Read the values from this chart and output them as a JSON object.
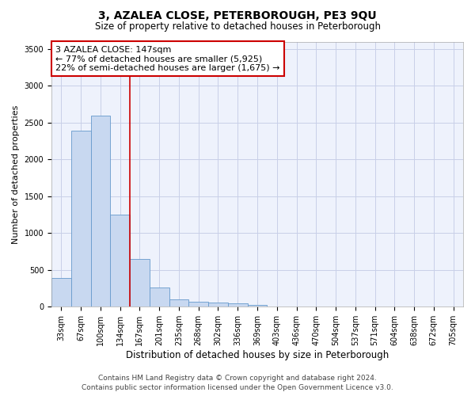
{
  "title": "3, AZALEA CLOSE, PETERBOROUGH, PE3 9QU",
  "subtitle": "Size of property relative to detached houses in Peterborough",
  "xlabel": "Distribution of detached houses by size in Peterborough",
  "ylabel": "Number of detached properties",
  "footer_line1": "Contains HM Land Registry data © Crown copyright and database right 2024.",
  "footer_line2": "Contains public sector information licensed under the Open Government Licence v3.0.",
  "bin_labels": [
    "33sqm",
    "67sqm",
    "100sqm",
    "134sqm",
    "167sqm",
    "201sqm",
    "235sqm",
    "268sqm",
    "302sqm",
    "336sqm",
    "369sqm",
    "403sqm",
    "436sqm",
    "470sqm",
    "504sqm",
    "537sqm",
    "571sqm",
    "604sqm",
    "638sqm",
    "672sqm",
    "705sqm"
  ],
  "bar_values": [
    390,
    2390,
    2600,
    1250,
    650,
    260,
    100,
    65,
    55,
    45,
    30,
    0,
    0,
    0,
    0,
    0,
    0,
    0,
    0,
    0,
    0
  ],
  "bar_color": "#c8d8f0",
  "bar_edge_color": "#6699cc",
  "vline_x": 3.5,
  "vline_color": "#cc0000",
  "annotation_text": "3 AZALEA CLOSE: 147sqm\n← 77% of detached houses are smaller (5,925)\n22% of semi-detached houses are larger (1,675) →",
  "annotation_box_color": "#cc0000",
  "ylim": [
    0,
    3600
  ],
  "yticks": [
    0,
    500,
    1000,
    1500,
    2000,
    2500,
    3000,
    3500
  ],
  "background_color": "#eef2fc",
  "grid_color": "#c8cfe8",
  "title_fontsize": 10,
  "subtitle_fontsize": 8.5,
  "ylabel_fontsize": 8,
  "xlabel_fontsize": 8.5,
  "tick_fontsize": 7,
  "annotation_fontsize": 8,
  "footer_fontsize": 6.5
}
